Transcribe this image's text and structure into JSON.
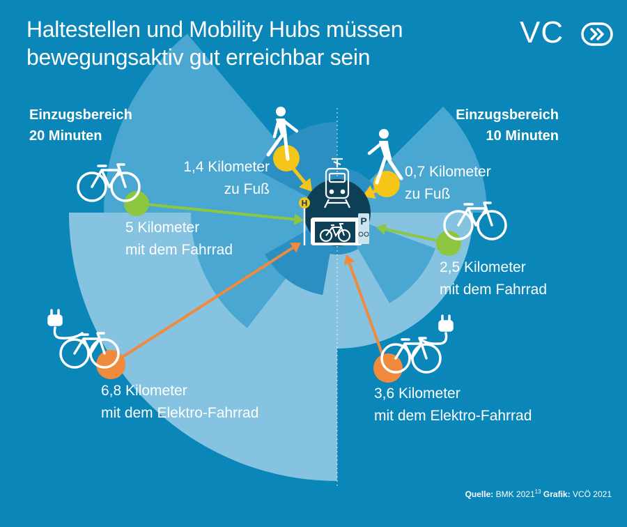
{
  "title": {
    "line1": "Haltestellen und Mobility Hubs müssen",
    "line2": "bewegungsaktiv gut erreichbar sein"
  },
  "logo": {
    "text": "VC",
    "mark": "vcoe-logo"
  },
  "zones": {
    "left": {
      "line1": "Einzugsbereich",
      "line2": "20 Minuten"
    },
    "right": {
      "line1": "Einzugsbereich",
      "line2": "10 Minuten"
    }
  },
  "modes": {
    "walk20": {
      "line1": "1,4 Kilometer",
      "line2": "zu Fuß",
      "icon": "walking-person-icon",
      "color": "#f5c518"
    },
    "bike20": {
      "line1": "5 Kilometer",
      "line2": "mit dem Fahrrad",
      "icon": "bicycle-icon",
      "color": "#8dc63f"
    },
    "ebike20": {
      "line1": "6,8 Kilometer",
      "line2": "mit dem Elektro-Fahrrad",
      "icon": "e-bike-icon",
      "color": "#f08a3c"
    },
    "walk10": {
      "line1": "0,7 Kilometer",
      "line2": "zu Fuß",
      "icon": "walking-person-icon",
      "color": "#f5c518"
    },
    "bike10": {
      "line1": "2,5 Kilometer",
      "line2": "mit dem Fahrrad",
      "icon": "bicycle-icon",
      "color": "#8dc63f"
    },
    "ebike10": {
      "line1": "3,6 Kilometer",
      "line2": "mit dem Elektro-Fahrrad",
      "icon": "e-bike-icon",
      "color": "#f08a3c"
    }
  },
  "hub": {
    "icons": [
      "tram-icon",
      "bus-stop-sign-icon",
      "bike-parking-icon",
      "parking-sign-icon"
    ],
    "stop_letter": "H",
    "parking_letter": "P"
  },
  "source": {
    "label_source": "Quelle:",
    "source_text": "BMK 2021",
    "footnote": "13",
    "label_graphic": "Grafik:",
    "graphic_text": "VCÖ 2021"
  },
  "colors": {
    "background": "#0a86b8",
    "hub": "#0d3f57",
    "walk": "#f5c518",
    "bike": "#8dc63f",
    "ebike": "#f08a3c"
  }
}
